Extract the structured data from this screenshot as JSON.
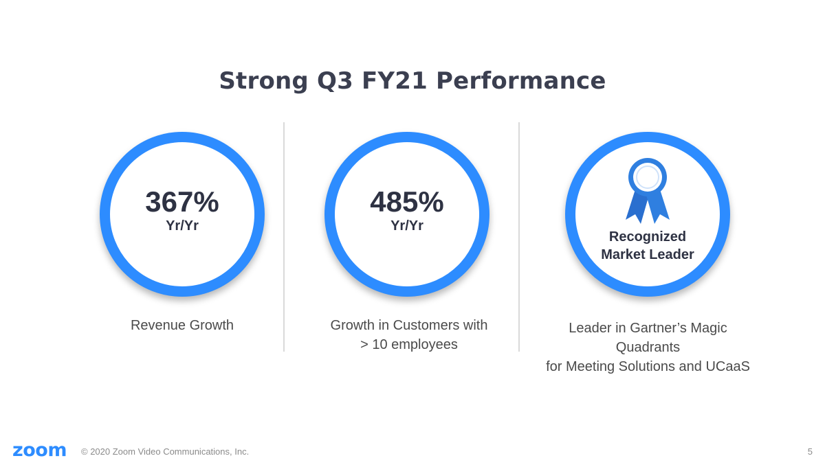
{
  "slide": {
    "title": "Strong Q3 FY21 Performance"
  },
  "metrics": [
    {
      "value": "367%",
      "unit": "Yr/Yr",
      "caption_lines": [
        "Revenue Growth"
      ]
    },
    {
      "value": "485%",
      "unit": "Yr/Yr",
      "caption_lines": [
        "Growth in Customers with",
        "> 10 employees"
      ]
    }
  ],
  "award": {
    "icon": "ribbon-award-icon",
    "label_lines": [
      "Recognized",
      "Market Leader"
    ],
    "caption_lines": [
      "Leader in Gartner’s Magic Quadrants",
      "for Meeting Solutions and UCaaS"
    ]
  },
  "footer": {
    "logo": "zoom",
    "copyright": "© 2020 Zoom Video Communications, Inc.",
    "page_number": "5"
  },
  "colors": {
    "accent": "#2d8cff",
    "ribbon": "#2f7fe0",
    "title": "#3b3f50",
    "caption": "#4a4a4a"
  }
}
